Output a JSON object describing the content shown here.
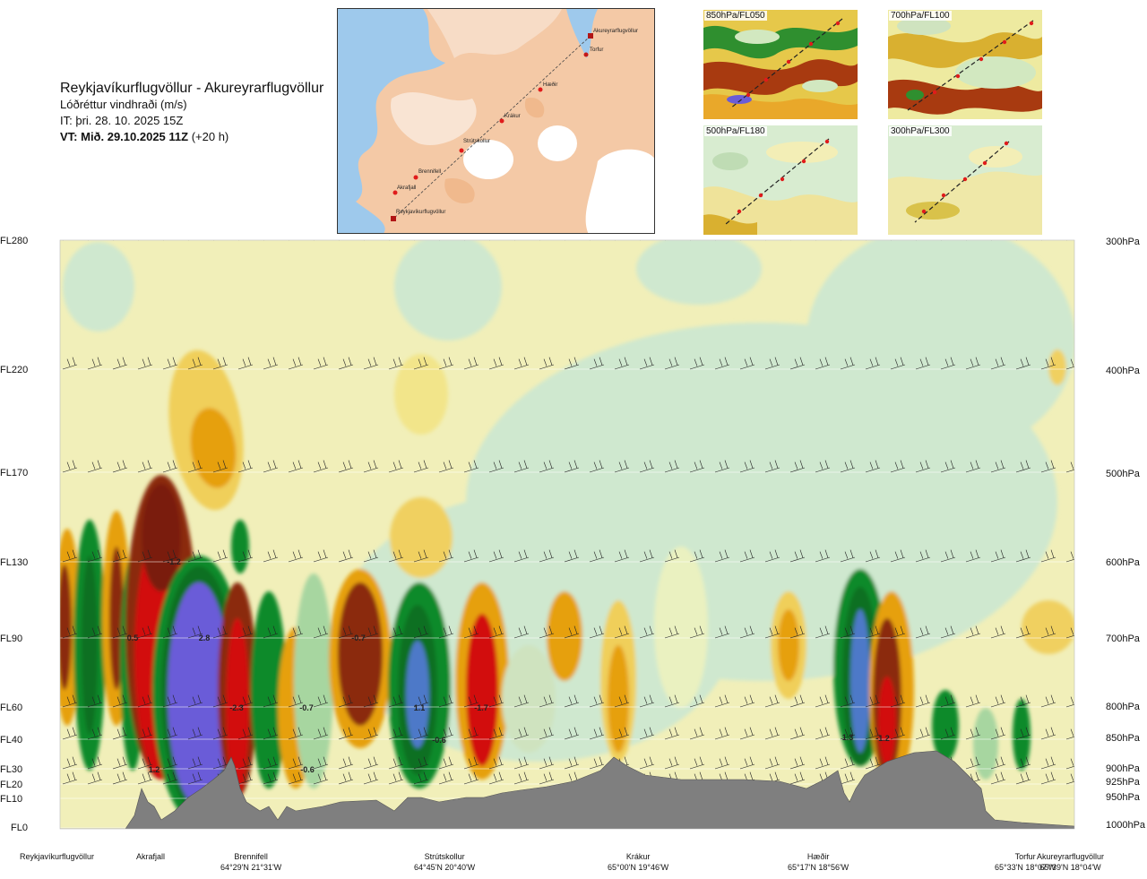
{
  "header": {
    "route": "Reykjavíkurflugvöllur - Akureyrarflugvöllur",
    "quantity": "Lóðréttur vindhraði (m/s)",
    "issue_time": "IT: þri. 28. 10. 2025 15Z",
    "valid_prefix": "VT: Mið. 29.10.2025 11Z",
    "valid_suffix": "(+20 h)"
  },
  "map": {
    "stations": [
      {
        "name": "Akureyrarflugvöllur"
      },
      {
        "name": "Torfur"
      },
      {
        "name": "Hæðir"
      },
      {
        "name": "Krákur"
      },
      {
        "name": "Strútskollur"
      },
      {
        "name": "Brennifell"
      },
      {
        "name": "Akrafjall"
      },
      {
        "name": "Reykjavíkurflugvöllur"
      }
    ]
  },
  "panels": [
    {
      "label": "850hPa/FL050"
    },
    {
      "label": "700hPa/FL100"
    },
    {
      "label": "500hPa/FL180"
    },
    {
      "label": "300hPa/FL300"
    }
  ],
  "colors": {
    "terrain": "#7f7f7f",
    "strong_up": "#6a5cd8",
    "up": "#0b8a2a",
    "weak_up": "#cfe8cf",
    "weak_down": "#f6f0b0",
    "down": "#e6a010",
    "strong_down": "#8b2a0a",
    "very_strong_down": "#d21010"
  },
  "chart_data": {
    "type": "heatmap",
    "title": "Reykjavíkurflugvöllur - Akureyrarflugvöllur",
    "value_label": "Lóðréttur vindhraði (m/s)",
    "y_levels_fl": [
      "FL280",
      "FL220",
      "FL170",
      "FL130",
      "FL90",
      "FL60",
      "FL40",
      "FL30",
      "FL20",
      "FL10",
      "FL0"
    ],
    "y_levels_hpa": [
      "300hPa",
      "400hPa",
      "500hPa",
      "600hPa",
      "700hPa",
      "800hPa",
      "850hPa",
      "900hPa",
      "925hPa",
      "950hPa",
      "1000hPa"
    ],
    "waypoints": [
      {
        "name": "Reykjavíkurflugvöllur",
        "coord": ""
      },
      {
        "name": "Akrafjall",
        "coord": ""
      },
      {
        "name": "Brennifell",
        "coord": "64°29'N 21°31'W"
      },
      {
        "name": "Strútskollur",
        "coord": "64°45'N 20°40'W"
      },
      {
        "name": "Krákur",
        "coord": "65°00'N 19°46'W"
      },
      {
        "name": "Hæðir",
        "coord": "65°17'N 18°56'W"
      },
      {
        "name": "Torfur",
        "coord": "65°33'N 18°07'W"
      },
      {
        "name": "Akureyrarflugvöllur",
        "coord": "65°39'N 18°04'W"
      }
    ],
    "value_labels": [
      "-1.2",
      "0.5",
      "2.8",
      "-0.7",
      "-2.3",
      "-0.7",
      "1.1",
      "-1.7",
      "-0.6",
      "-0.6",
      "1.3",
      "-1.2",
      "1.2"
    ]
  }
}
